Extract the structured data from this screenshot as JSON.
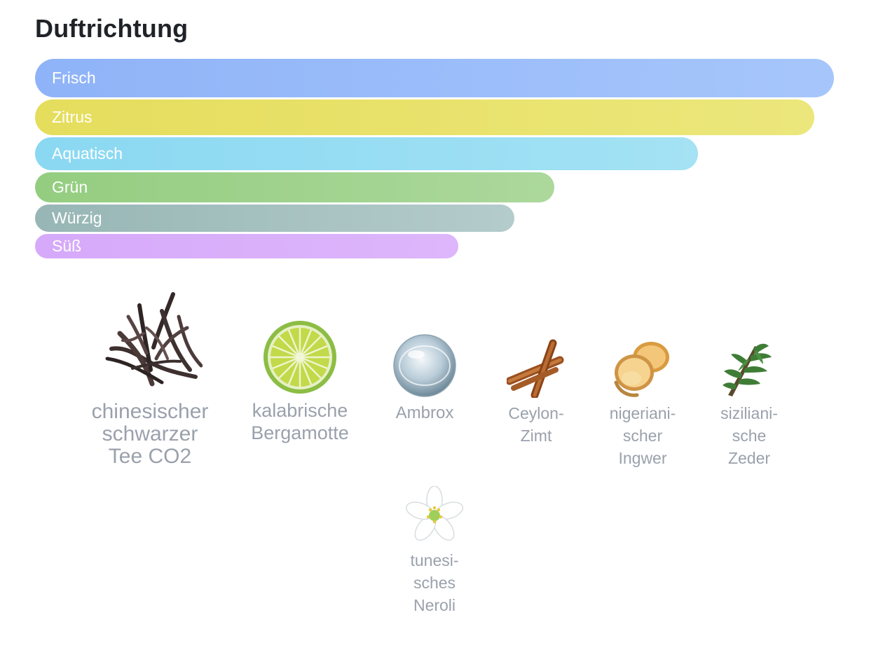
{
  "section": {
    "title": "Duftrichtung"
  },
  "scent_bars": [
    {
      "label": "Frisch",
      "level": 1.0,
      "color_from": "#8fb3f8",
      "color_to": "#a6c6fb"
    },
    {
      "label": "Zitrus",
      "level": 0.975,
      "color_from": "#e5dd5c",
      "color_to": "#ece77c"
    },
    {
      "label": "Aquatisch",
      "level": 0.83,
      "color_from": "#8ad8f2",
      "color_to": "#a4e2f4"
    },
    {
      "label": "Grün",
      "level": 0.65,
      "color_from": "#94cd80",
      "color_to": "#acd89c"
    },
    {
      "label": "Würzig",
      "level": 0.6,
      "color_from": "#97b6b5",
      "color_to": "#b4cccb"
    },
    {
      "label": "Süß",
      "level": 0.53,
      "color_from": "#d6a9fa",
      "color_to": "#ddb6fb"
    }
  ],
  "ingredients": [
    {
      "label": "chinesischer\nschwarzer\nTee CO2",
      "icon": "black-tea-leaves-icon"
    },
    {
      "label": "kalabrische\nBergamotte",
      "icon": "bergamot-slice-icon"
    },
    {
      "label": "Ambrox",
      "icon": "ambrox-drop-icon"
    },
    {
      "label": "Ceylon-\nZimt",
      "icon": "cinnamon-sticks-icon"
    },
    {
      "label": "nigeriani-\nscher\nIngwer",
      "icon": "ginger-root-icon"
    },
    {
      "label": "siziliani-\nsche\nZeder",
      "icon": "cedar-branch-icon"
    },
    {
      "label": "tunesi-\nsches\nNeroli",
      "icon": "neroli-flower-icon"
    }
  ]
}
